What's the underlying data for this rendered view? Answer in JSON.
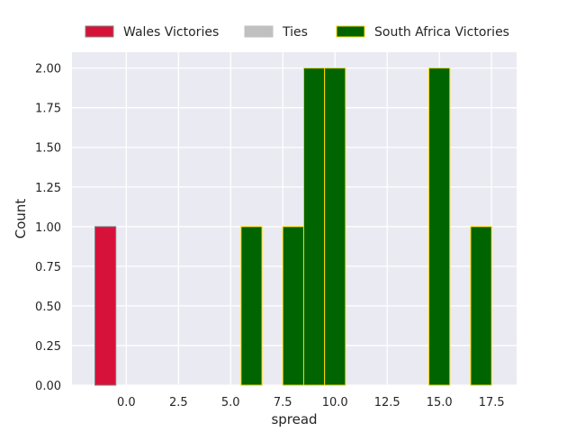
{
  "chart_data": {
    "type": "bar",
    "title": "",
    "xlabel": "spread",
    "ylabel": "Count",
    "xlim": [
      -2.6,
      18.7
    ],
    "ylim": [
      0,
      2.1
    ],
    "xticks": [
      0.0,
      2.5,
      5.0,
      7.5,
      10.0,
      12.5,
      15.0,
      17.5
    ],
    "xtick_labels": [
      "0.0",
      "2.5",
      "5.0",
      "7.5",
      "10.0",
      "12.5",
      "15.0",
      "17.5"
    ],
    "yticks": [
      0.0,
      0.25,
      0.5,
      0.75,
      1.0,
      1.25,
      1.5,
      1.75,
      2.0
    ],
    "ytick_labels": [
      "0.00",
      "0.25",
      "0.50",
      "0.75",
      "1.00",
      "1.25",
      "1.50",
      "1.75",
      "2.00"
    ],
    "grid": true,
    "legend_position": "top-center",
    "series": [
      {
        "name": "Wales Victories",
        "color": "#d7123a",
        "edge_color": "#808080",
        "bars": [
          {
            "x0": -1.5,
            "x1": -0.5,
            "count": 1
          }
        ]
      },
      {
        "name": "Ties",
        "color": "#c0c0c0",
        "edge_color": "#c0c0c0",
        "bars": []
      },
      {
        "name": "South Africa Victories",
        "color": "#006400",
        "edge_color": "#ffd700",
        "bars": [
          {
            "x0": 5.5,
            "x1": 6.5,
            "count": 1
          },
          {
            "x0": 7.5,
            "x1": 8.5,
            "count": 1
          },
          {
            "x0": 8.5,
            "x1": 9.5,
            "count": 2
          },
          {
            "x0": 9.5,
            "x1": 10.5,
            "count": 2
          },
          {
            "x0": 14.5,
            "x1": 15.5,
            "count": 2
          },
          {
            "x0": 16.5,
            "x1": 17.5,
            "count": 1
          }
        ]
      }
    ]
  },
  "style": {
    "plot_background": "#eaeaf2",
    "grid_color": "#ffffff",
    "text_color": "#262626"
  }
}
